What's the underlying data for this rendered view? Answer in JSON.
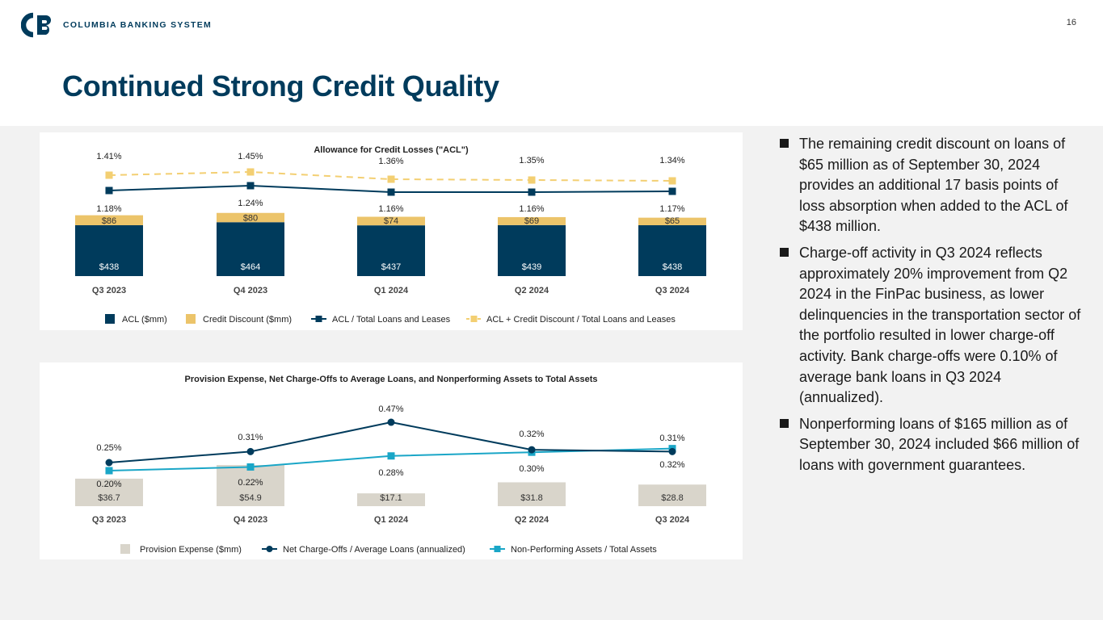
{
  "header": {
    "brand": "COLUMBIA BANKING SYSTEM",
    "page_number": "16",
    "title": "Continued Strong Credit Quality"
  },
  "colors": {
    "navy": "#003b5c",
    "gold": "#ecc46a",
    "gold_dash": "#f3cf72",
    "teal": "#1aa6c7",
    "taupe": "#d9d5cb",
    "gray_bg": "#f2f2f2"
  },
  "chart_data": [
    {
      "type": "bar",
      "title": "Allowance for Credit Losses (\"ACL\")",
      "categories": [
        "Q3 2023",
        "Q4 2023",
        "Q1 2024",
        "Q2 2024",
        "Q3 2024"
      ],
      "stacked_bars": [
        {
          "name": "ACL ($mm)",
          "values": [
            438,
            464,
            437,
            439,
            438
          ],
          "labels": [
            "$438",
            "$464",
            "$437",
            "$439",
            "$438"
          ],
          "color": "#003b5c"
        },
        {
          "name": "Credit Discount ($mm)",
          "values": [
            86,
            80,
            74,
            69,
            65
          ],
          "labels": [
            "$86",
            "$80",
            "$74",
            "$69",
            "$65"
          ],
          "color": "#ecc46a"
        }
      ],
      "lines": [
        {
          "name": "ACL / Total Loans and Leases",
          "values": [
            1.18,
            1.24,
            1.16,
            1.16,
            1.17
          ],
          "labels": [
            "1.18%",
            "1.24%",
            "1.16%",
            "1.16%",
            "1.17%"
          ],
          "color": "#003b5c",
          "dashed": false,
          "marker": "square"
        },
        {
          "name": "ACL + Credit Discount / Total Loans and Leases",
          "values": [
            1.41,
            1.45,
            1.36,
            1.35,
            1.34
          ],
          "labels": [
            "1.41%",
            "1.45%",
            "1.36%",
            "1.35%",
            "1.34%"
          ],
          "color": "#f3cf72",
          "dashed": true,
          "marker": "square"
        }
      ],
      "legend_position": "bottom"
    },
    {
      "type": "bar",
      "title": "Provision Expense, Net Charge-Offs to Average Loans, and Nonperforming Assets to Total Assets",
      "categories": [
        "Q3 2023",
        "Q4 2023",
        "Q1 2024",
        "Q2 2024",
        "Q3 2024"
      ],
      "bars": {
        "name": "Provision Expense ($mm)",
        "values": [
          36.7,
          54.9,
          17.1,
          31.8,
          28.8
        ],
        "labels": [
          "$36.7",
          "$54.9",
          "$17.1",
          "$31.8",
          "$28.8"
        ],
        "color": "#d9d5cb"
      },
      "lines": [
        {
          "name": "Net Charge-Offs / Average Loans (annualized)",
          "values": [
            0.25,
            0.31,
            0.47,
            0.32,
            0.31
          ],
          "labels": [
            "0.25%",
            "0.31%",
            "0.47%",
            "0.32%",
            "0.31%"
          ],
          "color": "#003b5c",
          "marker": "circle"
        },
        {
          "name": "Non-Performing Assets / Total Assets",
          "values": [
            0.2,
            0.22,
            0.28,
            0.3,
            0.32
          ],
          "labels": [
            "0.20%",
            "0.22%",
            "0.28%",
            "0.30%",
            "0.32%"
          ],
          "color": "#1aa6c7",
          "marker": "square"
        }
      ],
      "legend_position": "bottom"
    }
  ],
  "bullets": [
    "The remaining credit discount on loans of $65 million as of September 30, 2024 provides an additional 17 basis points of loss absorption when added to the ACL of $438 million.",
    "Charge-off activity in Q3 2024 reflects approximately 20% improvement from Q2 2024 in the FinPac business, as lower delinquencies in the transportation sector of the portfolio resulted in lower charge-off activity. Bank charge-offs were 0.10% of average bank loans in Q3 2024 (annualized).",
    "Nonperforming loans of $165 million as of September 30, 2024 included $66 million of loans with government guarantees."
  ]
}
